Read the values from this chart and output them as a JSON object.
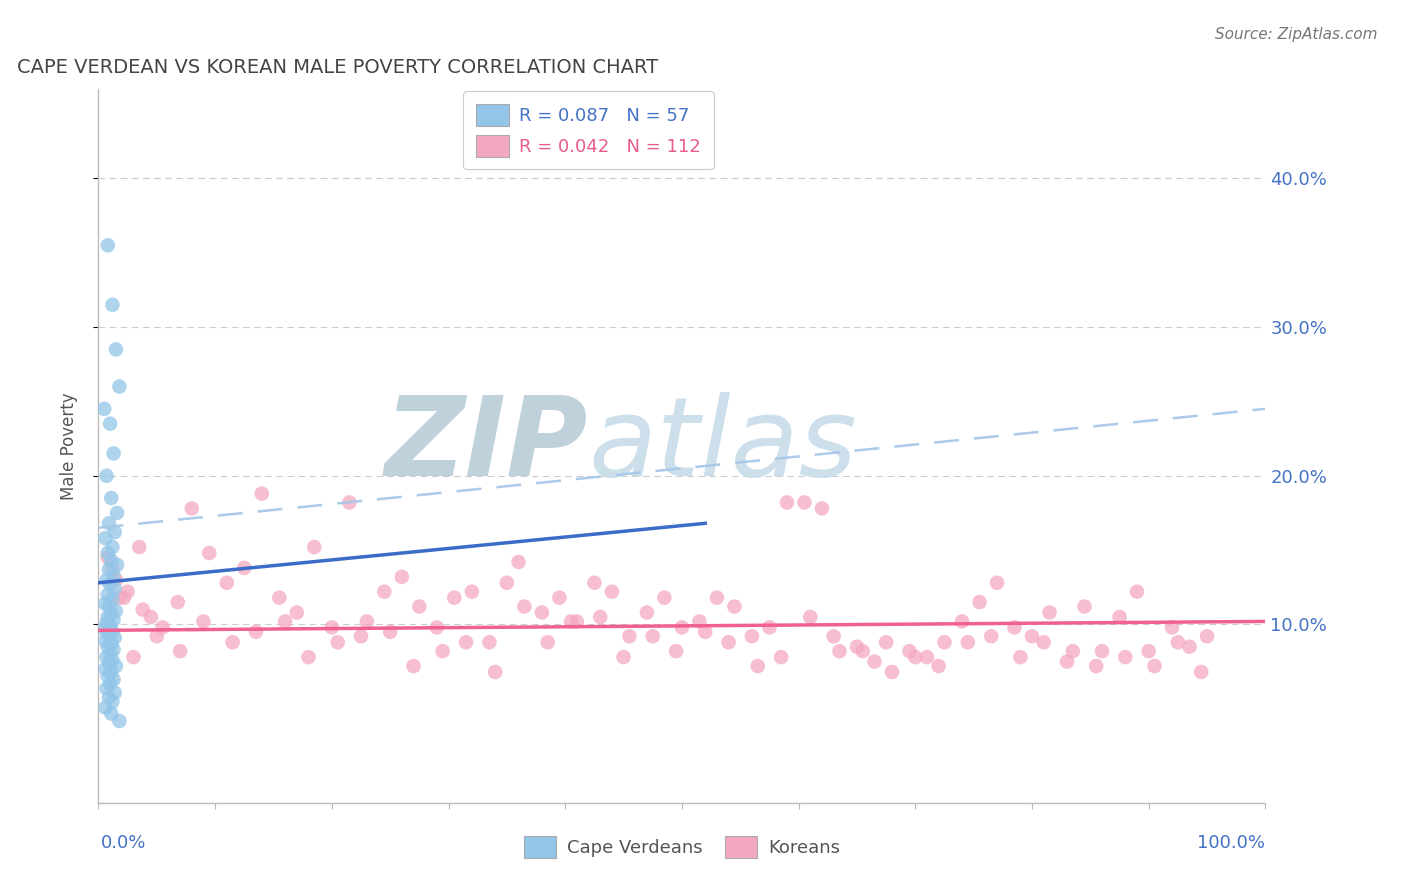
{
  "title": "CAPE VERDEAN VS KOREAN MALE POVERTY CORRELATION CHART",
  "source": "Source: ZipAtlas.com",
  "ylabel": "Male Poverty",
  "y_ticks": [
    0.1,
    0.2,
    0.3,
    0.4
  ],
  "y_tick_labels": [
    "10.0%",
    "20.0%",
    "30.0%",
    "40.0%"
  ],
  "xlim": [
    0.0,
    1.0
  ],
  "ylim": [
    -0.02,
    0.46
  ],
  "cape_verdean_r": 0.087,
  "cape_verdean_n": 57,
  "korean_r": 0.042,
  "korean_n": 112,
  "scatter_color_blue": "#92C5E8",
  "scatter_color_pink": "#F4A8C0",
  "line_color_blue": "#3A6CC8",
  "line_color_pink": "#F06090",
  "dashed_line_color": "#A8C8E8",
  "watermark_zip": "ZIP",
  "watermark_atlas": "atlas",
  "watermark_color_zip": "#C5D8E8",
  "watermark_color_atlas": "#D8E8F0",
  "background_color": "#FFFFFF",
  "grid_color": "#CCCCCC",
  "top_grid_color": "#BBBBBB",
  "cv_trend_x0": 0.0,
  "cv_trend_x1": 0.52,
  "cv_trend_y0": 0.128,
  "cv_trend_y1": 0.168,
  "ko_trend_x0": 0.0,
  "ko_trend_x1": 1.0,
  "ko_trend_y0": 0.096,
  "ko_trend_y1": 0.102,
  "dash_trend_x0": 0.0,
  "dash_trend_x1": 1.0,
  "dash_trend_y0": 0.165,
  "dash_trend_y1": 0.245,
  "cape_verdean_x": [
    0.008,
    0.012,
    0.015,
    0.018,
    0.005,
    0.01,
    0.013,
    0.007,
    0.011,
    0.016,
    0.009,
    0.014,
    0.006,
    0.012,
    0.008,
    0.011,
    0.016,
    0.009,
    0.013,
    0.007,
    0.01,
    0.014,
    0.008,
    0.012,
    0.006,
    0.009,
    0.015,
    0.011,
    0.008,
    0.013,
    0.007,
    0.01,
    0.005,
    0.012,
    0.009,
    0.014,
    0.006,
    0.011,
    0.008,
    0.013,
    0.01,
    0.007,
    0.012,
    0.009,
    0.015,
    0.006,
    0.011,
    0.008,
    0.013,
    0.01,
    0.007,
    0.014,
    0.009,
    0.012,
    0.006,
    0.011,
    0.018
  ],
  "cape_verdean_y": [
    0.355,
    0.315,
    0.285,
    0.26,
    0.245,
    0.235,
    0.215,
    0.2,
    0.185,
    0.175,
    0.168,
    0.162,
    0.158,
    0.152,
    0.148,
    0.143,
    0.14,
    0.137,
    0.133,
    0.13,
    0.127,
    0.124,
    0.12,
    0.117,
    0.114,
    0.112,
    0.109,
    0.107,
    0.105,
    0.103,
    0.101,
    0.099,
    0.097,
    0.095,
    0.093,
    0.091,
    0.089,
    0.087,
    0.085,
    0.083,
    0.08,
    0.078,
    0.076,
    0.074,
    0.072,
    0.07,
    0.068,
    0.065,
    0.063,
    0.06,
    0.057,
    0.054,
    0.051,
    0.048,
    0.044,
    0.04,
    0.035
  ],
  "korean_x": [
    0.008,
    0.015,
    0.022,
    0.035,
    0.045,
    0.012,
    0.025,
    0.038,
    0.055,
    0.068,
    0.08,
    0.095,
    0.11,
    0.125,
    0.14,
    0.155,
    0.17,
    0.185,
    0.2,
    0.215,
    0.23,
    0.245,
    0.26,
    0.275,
    0.29,
    0.305,
    0.32,
    0.335,
    0.35,
    0.365,
    0.38,
    0.395,
    0.41,
    0.425,
    0.44,
    0.455,
    0.47,
    0.485,
    0.5,
    0.515,
    0.53,
    0.545,
    0.56,
    0.575,
    0.59,
    0.605,
    0.62,
    0.635,
    0.65,
    0.665,
    0.68,
    0.695,
    0.71,
    0.725,
    0.74,
    0.755,
    0.77,
    0.785,
    0.8,
    0.815,
    0.83,
    0.845,
    0.86,
    0.875,
    0.89,
    0.905,
    0.92,
    0.935,
    0.95,
    0.018,
    0.03,
    0.05,
    0.07,
    0.09,
    0.115,
    0.135,
    0.16,
    0.18,
    0.205,
    0.225,
    0.25,
    0.27,
    0.295,
    0.315,
    0.34,
    0.36,
    0.385,
    0.405,
    0.43,
    0.45,
    0.475,
    0.495,
    0.52,
    0.54,
    0.565,
    0.585,
    0.61,
    0.63,
    0.655,
    0.675,
    0.7,
    0.72,
    0.745,
    0.765,
    0.79,
    0.81,
    0.835,
    0.855,
    0.88,
    0.9,
    0.925,
    0.945
  ],
  "korean_y": [
    0.145,
    0.13,
    0.118,
    0.152,
    0.105,
    0.138,
    0.122,
    0.11,
    0.098,
    0.115,
    0.178,
    0.148,
    0.128,
    0.138,
    0.188,
    0.118,
    0.108,
    0.152,
    0.098,
    0.182,
    0.102,
    0.122,
    0.132,
    0.112,
    0.098,
    0.118,
    0.122,
    0.088,
    0.128,
    0.112,
    0.108,
    0.118,
    0.102,
    0.128,
    0.122,
    0.092,
    0.108,
    0.118,
    0.098,
    0.102,
    0.118,
    0.112,
    0.092,
    0.098,
    0.182,
    0.182,
    0.178,
    0.082,
    0.085,
    0.075,
    0.068,
    0.082,
    0.078,
    0.088,
    0.102,
    0.115,
    0.128,
    0.098,
    0.092,
    0.108,
    0.075,
    0.112,
    0.082,
    0.105,
    0.122,
    0.072,
    0.098,
    0.085,
    0.092,
    0.118,
    0.078,
    0.092,
    0.082,
    0.102,
    0.088,
    0.095,
    0.102,
    0.078,
    0.088,
    0.092,
    0.095,
    0.072,
    0.082,
    0.088,
    0.068,
    0.142,
    0.088,
    0.102,
    0.105,
    0.078,
    0.092,
    0.082,
    0.095,
    0.088,
    0.072,
    0.078,
    0.105,
    0.092,
    0.082,
    0.088,
    0.078,
    0.072,
    0.088,
    0.092,
    0.078,
    0.088,
    0.082,
    0.072,
    0.078,
    0.082,
    0.088,
    0.068
  ]
}
